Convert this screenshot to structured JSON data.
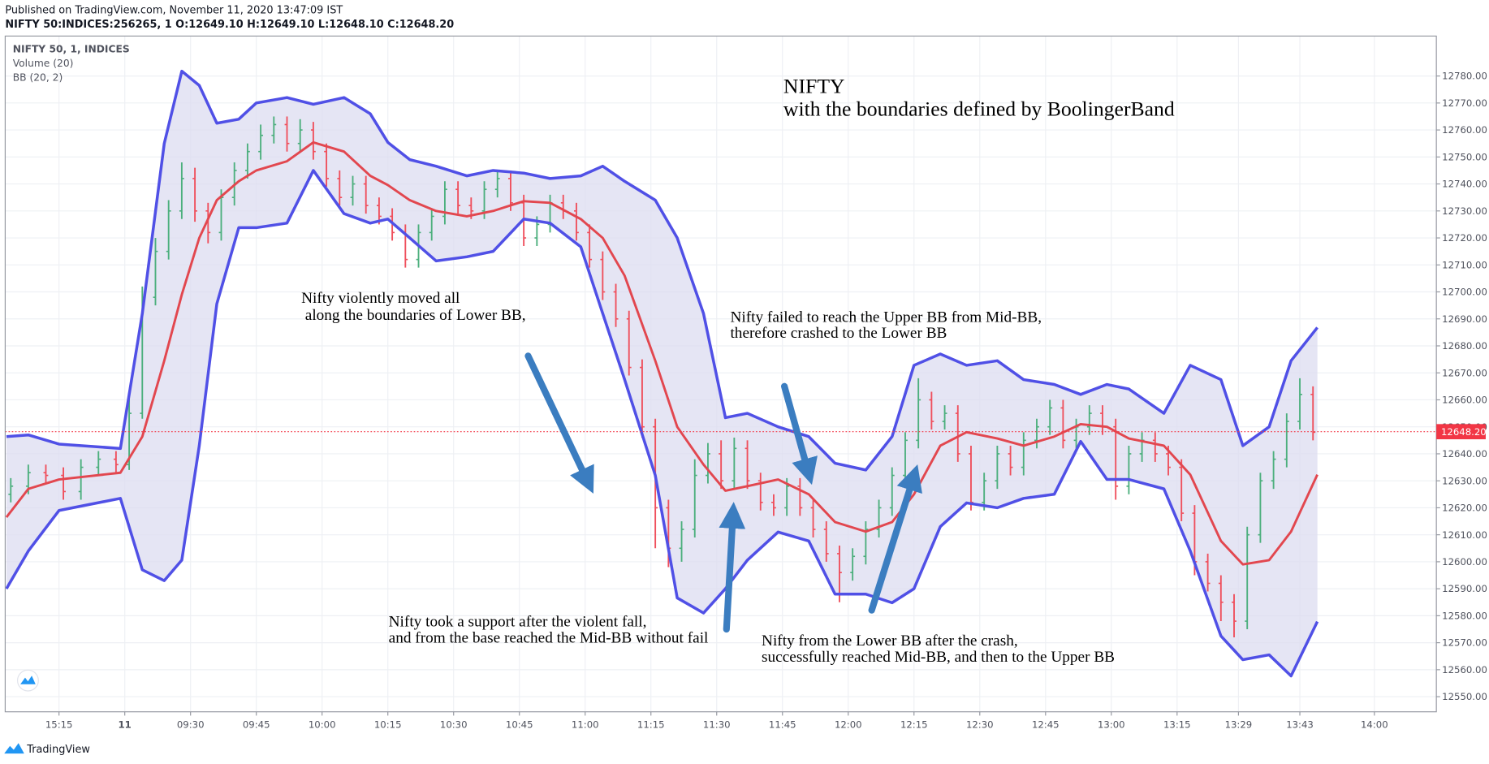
{
  "header": {
    "published": "Published on TradingView.com, November 11, 2020 13:47:09 IST",
    "symbol_line": "NIFTY 50:INDICES:256265, 1  O:12649.10 H:12649.10 L:12648.10 C:12648.20"
  },
  "legend": [
    "NIFTY 50, 1, INDICES",
    "Volume (20)",
    "BB (20, 2)"
  ],
  "brand": "TradingView",
  "chart_data": {
    "type": "ohlc",
    "title": "NIFTY",
    "subtitle": "with the boundaries defined by BoolingerBand",
    "annotations": [
      {
        "lines": [
          "Nifty violently moved all",
          "along the boundaries of Lower BB,"
        ]
      },
      {
        "lines": [
          "Nifty failed to reach the Upper BB from Mid-BB,",
          "therefore crashed to the Lower BB"
        ]
      },
      {
        "lines": [
          "Nifty took a support after the violent fall,",
          "and from the base reached the Mid-BB without fail"
        ]
      },
      {
        "lines": [
          "Nifty from the Lower BB after the crash,",
          "successfully reached Mid-BB, and then to the Upper BB"
        ]
      }
    ],
    "up_color": "#4caf7d",
    "down_color": "#ef4f5c",
    "x": [
      "15:04",
      "15:08",
      "15:12",
      "15:16",
      "15:20",
      "15:24",
      "15:28",
      "09:16",
      "09:19",
      "09:22",
      "09:25",
      "09:28",
      "09:31",
      "09:34",
      "09:37",
      "09:40",
      "09:43",
      "09:46",
      "09:49",
      "09:52",
      "09:55",
      "09:58",
      "10:01",
      "10:04",
      "10:07",
      "10:10",
      "10:13",
      "10:16",
      "10:19",
      "10:22",
      "10:25",
      "10:28",
      "10:31",
      "10:34",
      "10:37",
      "10:40",
      "10:43",
      "10:46",
      "10:49",
      "10:52",
      "10:55",
      "10:58",
      "11:01",
      "11:04",
      "11:07",
      "11:10",
      "11:13",
      "11:16",
      "11:19",
      "11:22",
      "11:25",
      "11:28",
      "11:31",
      "11:34",
      "11:37",
      "11:40",
      "11:43",
      "11:46",
      "11:49",
      "11:52",
      "11:55",
      "11:58",
      "12:01",
      "12:04",
      "12:07",
      "12:10",
      "12:13",
      "12:16",
      "12:19",
      "12:22",
      "12:25",
      "12:28",
      "12:31",
      "12:34",
      "12:37",
      "12:40",
      "12:43",
      "12:46",
      "12:49",
      "12:52",
      "12:55",
      "12:58",
      "13:01",
      "13:04",
      "13:07",
      "13:10",
      "13:13",
      "13:16",
      "13:19",
      "13:22",
      "13:25",
      "13:28",
      "13:31",
      "13:34",
      "13:37",
      "13:40",
      "13:43",
      "13:46"
    ],
    "open": [
      12625,
      12628,
      12633,
      12632,
      12626,
      12635,
      12638,
      12636,
      12655,
      12698,
      12715,
      12730,
      12742,
      12730,
      12722,
      12735,
      12745,
      12752,
      12758,
      12762,
      12755,
      12760,
      12752,
      12742,
      12735,
      12740,
      12732,
      12728,
      12722,
      12712,
      12722,
      12728,
      12738,
      12732,
      12730,
      12738,
      12742,
      12733,
      12720,
      12725,
      12733,
      12730,
      12722,
      12712,
      12700,
      12690,
      12672,
      12650,
      12620,
      12605,
      12612,
      12632,
      12640,
      12630,
      12642,
      12630,
      12622,
      12620,
      12628,
      12620,
      12612,
      12603,
      12596,
      12602,
      12612,
      12620,
      12632,
      12645,
      12660,
      12652,
      12655,
      12640,
      12622,
      12630,
      12640,
      12635,
      12645,
      12650,
      12657,
      12645,
      12650,
      12655,
      12650,
      12628,
      12640,
      12645,
      12640,
      12635,
      12618,
      12600,
      12592,
      12585,
      12578,
      12610,
      12630,
      12638,
      12652,
      12662
    ],
    "high": [
      12631,
      12636,
      12636,
      12635,
      12638,
      12641,
      12641,
      12662,
      12702,
      12720,
      12734,
      12748,
      12746,
      12733,
      12738,
      12748,
      12755,
      12762,
      12765,
      12765,
      12764,
      12763,
      12755,
      12745,
      12743,
      12743,
      12735,
      12731,
      12725,
      12725,
      12731,
      12741,
      12741,
      12735,
      12741,
      12745,
      12745,
      12736,
      12728,
      12736,
      12736,
      12733,
      12725,
      12715,
      12703,
      12693,
      12675,
      12653,
      12623,
      12615,
      12638,
      12644,
      12645,
      12646,
      12645,
      12633,
      12625,
      12631,
      12631,
      12623,
      12615,
      12606,
      12605,
      12615,
      12623,
      12635,
      12648,
      12668,
      12663,
      12658,
      12658,
      12643,
      12633,
      12643,
      12643,
      12648,
      12653,
      12660,
      12660,
      12653,
      12658,
      12658,
      12653,
      12643,
      12648,
      12648,
      12643,
      12638,
      12621,
      12603,
      12595,
      12588,
      12613,
      12633,
      12641,
      12655,
      12668,
      12665
    ],
    "low": [
      12622,
      12625,
      12629,
      12623,
      12623,
      12632,
      12633,
      12634,
      12653,
      12695,
      12712,
      12727,
      12726,
      12718,
      12719,
      12732,
      12742,
      12749,
      12755,
      12752,
      12752,
      12749,
      12739,
      12732,
      12732,
      12729,
      12725,
      12719,
      12709,
      12709,
      12719,
      12725,
      12729,
      12727,
      12727,
      12735,
      12730,
      12717,
      12717,
      12722,
      12727,
      12719,
      12709,
      12697,
      12687,
      12669,
      12646,
      12605,
      12598,
      12600,
      12609,
      12629,
      12627,
      12627,
      12627,
      12619,
      12617,
      12617,
      12617,
      12609,
      12600,
      12585,
      12593,
      12599,
      12609,
      12617,
      12629,
      12642,
      12649,
      12649,
      12637,
      12619,
      12619,
      12627,
      12632,
      12632,
      12642,
      12647,
      12642,
      12642,
      12647,
      12647,
      12623,
      12625,
      12637,
      12637,
      12632,
      12615,
      12595,
      12589,
      12578,
      12572,
      12575,
      12607,
      12627,
      12635,
      12649,
      12645
    ],
    "close": [
      12628,
      12633,
      12632,
      12626,
      12635,
      12638,
      12636,
      12655,
      12698,
      12715,
      12730,
      12742,
      12730,
      12722,
      12735,
      12745,
      12752,
      12758,
      12762,
      12755,
      12760,
      12752,
      12742,
      12735,
      12740,
      12732,
      12728,
      12722,
      12712,
      12722,
      12728,
      12738,
      12732,
      12730,
      12738,
      12742,
      12733,
      12720,
      12725,
      12733,
      12730,
      12722,
      12712,
      12700,
      12690,
      12672,
      12650,
      12620,
      12605,
      12612,
      12632,
      12640,
      12630,
      12642,
      12630,
      12622,
      12620,
      12628,
      12620,
      12612,
      12603,
      12596,
      12602,
      12612,
      12620,
      12632,
      12645,
      12660,
      12652,
      12655,
      12640,
      12622,
      12630,
      12640,
      12635,
      12645,
      12650,
      12657,
      12645,
      12650,
      12655,
      12650,
      12628,
      12640,
      12645,
      12640,
      12635,
      12618,
      12600,
      12592,
      12585,
      12578,
      12610,
      12630,
      12638,
      12652,
      12662,
      12648
    ],
    "bands": {
      "x": [
        "15:03",
        "15:08",
        "15:15",
        "15:29",
        "09:19",
        "09:24",
        "09:28",
        "09:32",
        "09:36",
        "09:41",
        "09:45",
        "09:52",
        "09:58",
        "10:05",
        "10:11",
        "10:15",
        "10:20",
        "10:26",
        "10:33",
        "10:39",
        "10:46",
        "10:52",
        "10:59",
        "11:04",
        "11:09",
        "11:16",
        "11:21",
        "11:27",
        "11:32",
        "11:37",
        "11:44",
        "11:51",
        "11:57",
        "12:04",
        "12:10",
        "12:15",
        "12:21",
        "12:27",
        "12:34",
        "12:40",
        "12:47",
        "12:53",
        "12:59",
        "13:04",
        "13:12",
        "13:18",
        "13:25",
        "13:30",
        "13:36",
        "13:41",
        "13:47"
      ],
      "upper": [
        12646.4,
        12647,
        12643.6,
        12642,
        12692,
        12755,
        12781.8,
        12776.5,
        12762.5,
        12764,
        12770,
        12772,
        12769.5,
        12772,
        12766,
        12755.4,
        12749,
        12746.6,
        12743,
        12745,
        12744,
        12742,
        12743,
        12746.6,
        12741,
        12734,
        12720,
        12692,
        12653.4,
        12655,
        12650,
        12646.4,
        12636.5,
        12634,
        12646.4,
        12672.8,
        12677,
        12672.8,
        12674.5,
        12667.5,
        12665.7,
        12662,
        12665.7,
        12664,
        12655,
        12672.8,
        12667.5,
        12643,
        12650,
        12674.5,
        12686.8
      ],
      "basis": [
        12616.5,
        12627,
        12630.5,
        12633,
        12646.4,
        12674.5,
        12699,
        12720,
        12734,
        12741,
        12745,
        12748.4,
        12755.4,
        12752,
        12743,
        12739.6,
        12734,
        12730,
        12728,
        12730,
        12733.6,
        12733,
        12727,
        12720,
        12706,
        12674.5,
        12650,
        12636,
        12626.3,
        12628,
        12630.5,
        12625,
        12614.7,
        12611.2,
        12614.7,
        12625,
        12643,
        12648,
        12645.7,
        12643,
        12646.4,
        12651,
        12650,
        12645.7,
        12643,
        12632.3,
        12607.7,
        12599,
        12600.6,
        12611.2,
        12632.3
      ],
      "lower": [
        12590,
        12604,
        12619,
        12623.5,
        12597,
        12593,
        12600.6,
        12643,
        12695.6,
        12723.8,
        12723.8,
        12725.5,
        12745,
        12729,
        12725.5,
        12727,
        12720,
        12711.5,
        12713,
        12715,
        12727,
        12725.5,
        12716.7,
        12692,
        12667.5,
        12632,
        12586.6,
        12581,
        12590,
        12600.6,
        12611,
        12607.7,
        12588,
        12588,
        12584.8,
        12590,
        12613,
        12621.8,
        12620,
        12623.5,
        12625,
        12644.6,
        12630.5,
        12630.5,
        12627,
        12604,
        12572.5,
        12563.7,
        12565.5,
        12557.7,
        12577.8
      ],
      "band_color": "#5050e6",
      "basis_color": "#e2474f",
      "fill_color": "#dcdcf0"
    },
    "last_price": {
      "value": 12648.2,
      "label": "12648.20"
    },
    "last_price_color": "#f23645",
    "ylim": [
      12544.4,
      12794.8
    ],
    "yticks": [
      {
        "value": 12550,
        "label": "12550.00"
      },
      {
        "value": 12560,
        "label": "12560.00"
      },
      {
        "value": 12570,
        "label": "12570.00"
      },
      {
        "value": 12580,
        "label": "12580.00"
      },
      {
        "value": 12590,
        "label": "12590.00"
      },
      {
        "value": 12600,
        "label": "12600.00"
      },
      {
        "value": 12610,
        "label": "12610.00"
      },
      {
        "value": 12620,
        "label": "12620.00"
      },
      {
        "value": 12630,
        "label": "12630.00"
      },
      {
        "value": 12640,
        "label": "12640.00"
      },
      {
        "value": 12650,
        "label": "12650.00"
      },
      {
        "value": 12660,
        "label": "12660.00"
      },
      {
        "value": 12670,
        "label": "12670.00"
      },
      {
        "value": 12680,
        "label": "12680.00"
      },
      {
        "value": 12690,
        "label": "12690.00"
      },
      {
        "value": 12700,
        "label": "12700.00"
      },
      {
        "value": 12710,
        "label": "12710.00"
      },
      {
        "value": 12720,
        "label": "12720.00"
      },
      {
        "value": 12730,
        "label": "12730.00"
      },
      {
        "value": 12740,
        "label": "12740.00"
      },
      {
        "value": 12750,
        "label": "12750.00"
      },
      {
        "value": 12760,
        "label": "12760.00"
      },
      {
        "value": 12770,
        "label": "12770.00"
      },
      {
        "value": 12780,
        "label": "12780.00"
      }
    ],
    "xticks": [
      "15:15",
      {
        "value": "09:15",
        "label": "11"
      },
      "09:30",
      "09:45",
      "10:00",
      "10:15",
      "10:30",
      "10:45",
      "11:00",
      "11:15",
      "11:30",
      "11:45",
      "12:00",
      "12:15",
      "12:30",
      "12:45",
      "13:00",
      "13:15",
      "13:29",
      "13:43",
      "14:00"
    ],
    "grid": true
  }
}
